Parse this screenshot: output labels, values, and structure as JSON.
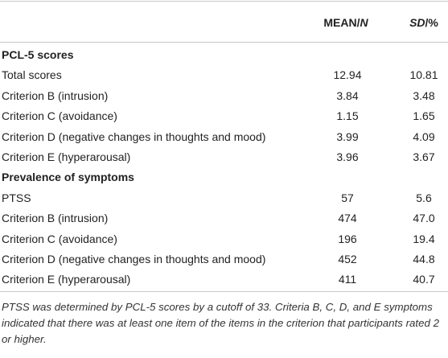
{
  "table": {
    "header": [
      [
        "MEAN/",
        "N"
      ],
      [
        "SD",
        "/%"
      ]
    ],
    "sections": [
      {
        "title": "PCL-5 scores",
        "rows": [
          [
            "Total scores",
            "12.94",
            "10.81"
          ],
          [
            "Criterion B (intrusion)",
            "3.84",
            "3.48"
          ],
          [
            "Criterion C (avoidance)",
            "1.15",
            "1.65"
          ],
          [
            "Criterion D (negative changes in thoughts and mood)",
            "3.99",
            "4.09"
          ],
          [
            "Criterion E (hyperarousal)",
            "3.96",
            "3.67"
          ]
        ]
      },
      {
        "title": "Prevalence of symptoms",
        "rows": [
          [
            "PTSS",
            "57",
            "5.6"
          ],
          [
            "Criterion B (intrusion)",
            "474",
            "47.0"
          ],
          [
            "Criterion C (avoidance)",
            "196",
            "19.4"
          ],
          [
            "Criterion D (negative changes in thoughts and mood)",
            "452",
            "44.8"
          ],
          [
            "Criterion E (hyperarousal)",
            "411",
            "40.7"
          ]
        ]
      }
    ],
    "footnote": "PTSS was determined by PCL-5 scores by a cutoff of 33. Criteria B, C, D, and E symptoms indicated that there was at least one item of the items in the criterion that participants rated 2 or higher."
  }
}
